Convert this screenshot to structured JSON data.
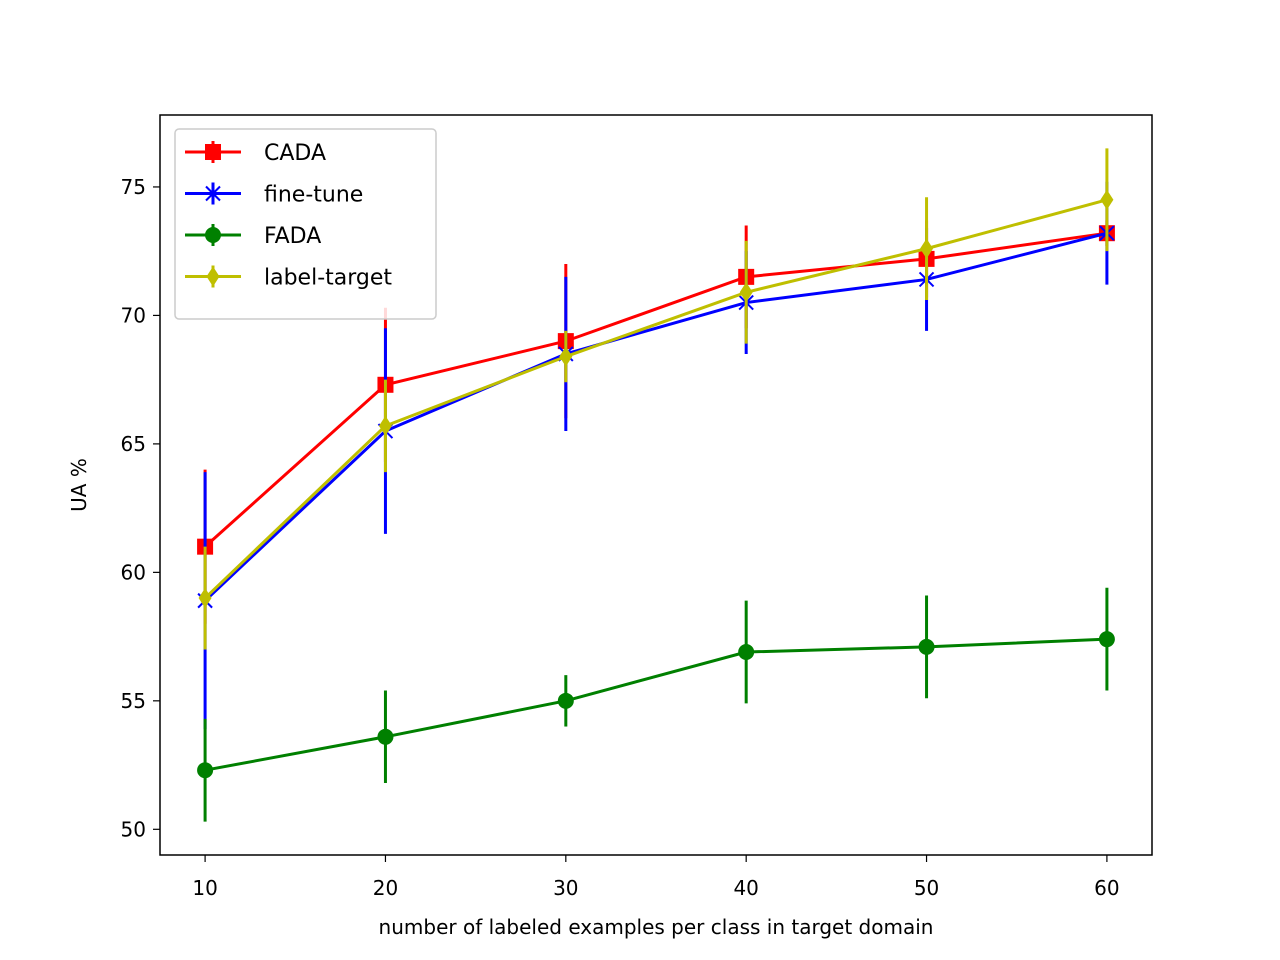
{
  "chart_data": {
    "type": "line",
    "title": "",
    "xlabel": "number of labeled examples per class in target domain",
    "ylabel": "UA %",
    "x": [
      10,
      20,
      30,
      40,
      50,
      60
    ],
    "xlim": [
      7.5,
      62.5
    ],
    "ylim": [
      49,
      77.8
    ],
    "xticks": [
      10,
      20,
      30,
      40,
      50,
      60
    ],
    "yticks": [
      50,
      55,
      60,
      65,
      70,
      75
    ],
    "legend_position": "top-left",
    "grid": false,
    "series": [
      {
        "name": "CADA",
        "color": "#ff0000",
        "marker": "square",
        "values": [
          61.0,
          67.3,
          69.0,
          71.5,
          72.2,
          73.2
        ],
        "errors": [
          3.0,
          3.0,
          3.0,
          2.0,
          1.5,
          0.5
        ]
      },
      {
        "name": "fine-tune",
        "color": "#0000ff",
        "marker": "x",
        "values": [
          58.9,
          65.5,
          68.5,
          70.5,
          71.4,
          73.2
        ],
        "errors": [
          5.0,
          4.0,
          3.0,
          2.0,
          2.0,
          2.0
        ]
      },
      {
        "name": "FADA",
        "color": "#008000",
        "marker": "circle",
        "values": [
          52.3,
          53.6,
          55.0,
          56.9,
          57.1,
          57.4
        ],
        "errors": [
          2.0,
          1.8,
          1.0,
          2.0,
          2.0,
          2.0
        ]
      },
      {
        "name": "label-target",
        "color": "#bfbf00",
        "marker": "diamond",
        "values": [
          59.0,
          65.7,
          68.4,
          70.9,
          72.6,
          74.5
        ],
        "errors": [
          2.0,
          1.8,
          1.0,
          2.0,
          2.0,
          2.0
        ]
      }
    ]
  }
}
